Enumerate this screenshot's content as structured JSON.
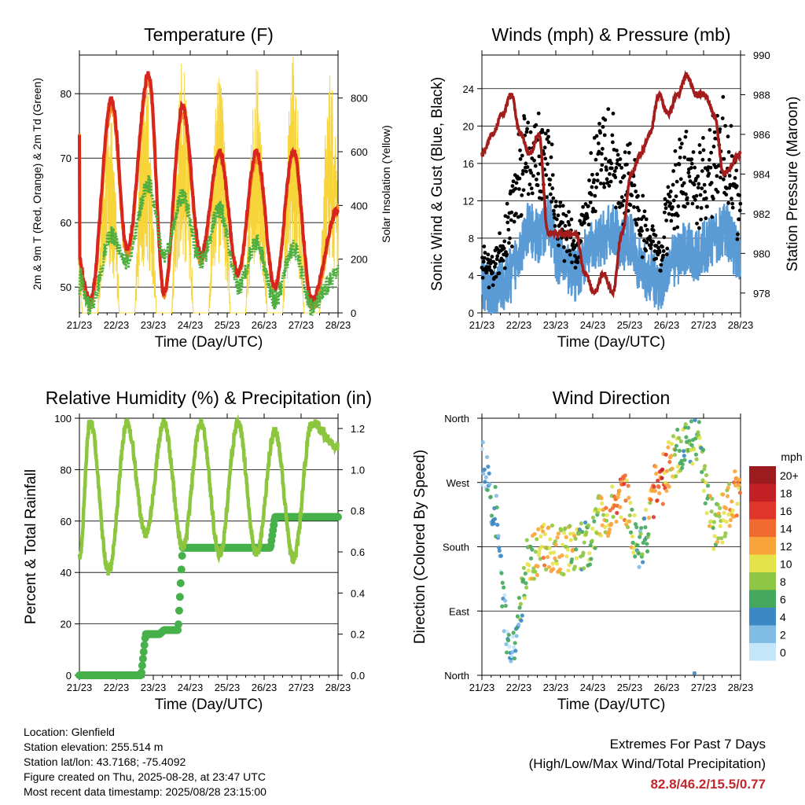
{
  "temperature": {
    "title": "Temperature (F)",
    "ylabel": "2m & 9m T (Red, Orange) & 2m Td (Green)",
    "y2label": "Solar Insolation (Yellow)",
    "xlabel": "Time (Day/UTC)",
    "yticks": [
      "50",
      "60",
      "70",
      "80"
    ],
    "y2ticks": [
      "0",
      "200",
      "400",
      "600",
      "800"
    ]
  },
  "winds": {
    "title": "Winds (mph) & Pressure (mb)",
    "ylabel": "Sonic Wind & Gust (Blue, Black)",
    "y2label": "Station Pressure (Maroon)",
    "xlabel": "Time (Day/UTC)",
    "yticks": [
      "0",
      "4",
      "8",
      "12",
      "16",
      "20",
      "24"
    ],
    "y2ticks": [
      "978",
      "980",
      "982",
      "984",
      "986",
      "988",
      "990"
    ]
  },
  "humidity": {
    "title": "Relative Humidity (%) & Precipitation (in)",
    "ylabel": "Percent & Total Rainfall",
    "xlabel": "Time (Day/UTC)",
    "yticks": [
      "0",
      "20",
      "40",
      "60",
      "80",
      "100"
    ],
    "y2ticks": [
      "0.0",
      "0.2",
      "0.4",
      "0.6",
      "0.8",
      "1.0",
      "1.2"
    ]
  },
  "direction": {
    "title": "Wind Direction",
    "ylabel": "Direction (Colored By Speed)",
    "xlabel": "Time (Day/UTC)",
    "yticks": [
      "North",
      "East",
      "South",
      "West",
      "North"
    ],
    "legend_title": "mph",
    "legend_labels": [
      "20+",
      "18",
      "16",
      "14",
      "12",
      "10",
      "8",
      "6",
      "4",
      "2",
      "0"
    ],
    "legend_colors": [
      "#9b1b1e",
      "#c32026",
      "#e0352b",
      "#f16a2f",
      "#f9a43a",
      "#e4e34a",
      "#8fc643",
      "#44a85c",
      "#3b88c4",
      "#80bce4",
      "#c4e6f8"
    ]
  },
  "x_ticks": [
    "21/23",
    "22/23",
    "23/23",
    "24/23",
    "25/23",
    "26/23",
    "27/23",
    "28/23"
  ],
  "info": {
    "location": "Location: Glenfield",
    "elevation": "Station elevation: 255.514 m",
    "latlon": "Station lat/lon: 43.7168; -75.4092",
    "created": "Figure created on Thu, 2025-08-28, at 23:47 UTC",
    "recent": "Most recent data timestamp: 2025/08/28 23:15:00"
  },
  "extremes": {
    "line1": "Extremes For Past 7 Days",
    "line2": "(High/Low/Max Wind/Total Precipitation)",
    "values": "82.8/46.2/15.5/0.77"
  },
  "colors": {
    "temp2m": "#d7261e",
    "temp9m": "#f58a1f",
    "dewpoint": "#4caf3f",
    "solar": "#f7d53a",
    "wind": "#5b9bd5",
    "gust": "#000000",
    "pressure": "#a31d1d",
    "rh": "#8cc63f",
    "precip": "#46b04a",
    "highlight": "#c1272d"
  },
  "chart_data": [
    {
      "type": "line",
      "title": "Temperature (F)",
      "x": [
        "21/23",
        "21/18",
        "22/06",
        "22/20",
        "23/06",
        "23/20",
        "24/06",
        "24/18",
        "25/06",
        "25/18",
        "26/06",
        "26/18",
        "27/06",
        "27/18",
        "28/06",
        "28/23"
      ],
      "series": [
        {
          "values": [
            74,
            59,
            48,
            79,
            56,
            83,
            49,
            78,
            55,
            71,
            52,
            71,
            50,
            71,
            48,
            62
          ]
        },
        {
          "values": [
            74,
            58,
            47,
            78,
            55,
            82,
            49,
            77,
            54,
            71,
            52,
            70,
            50,
            71,
            47,
            62
          ]
        },
        {
          "values": [
            50,
            56,
            47,
            58,
            54,
            66,
            55,
            64,
            54,
            62,
            50,
            57,
            48,
            56,
            47,
            52
          ]
        }
      ],
      "y2_series": [
        {
          "peaks_by_day": [
            800,
            900,
            950,
            920,
            940,
            960,
            910,
            900
          ]
        }
      ],
      "ylim": [
        46,
        86
      ],
      "y2lim": [
        0,
        960
      ]
    },
    {
      "type": "scatter",
      "title": "Winds (mph) & Pressure (mb)",
      "x": [
        "21/23",
        "22/06",
        "22/12",
        "22/18",
        "23/00",
        "23/06",
        "23/12",
        "23/18",
        "24/00",
        "24/06",
        "24/12",
        "24/18",
        "25/00",
        "25/06",
        "25/12",
        "25/18",
        "26/00",
        "26/06",
        "26/12",
        "26/18",
        "27/00",
        "27/06",
        "27/12",
        "27/18",
        "28/00",
        "28/06",
        "28/12",
        "28/23"
      ],
      "series": [
        {
          "values": [
            3,
            2,
            3,
            4,
            7,
            9,
            8,
            10,
            6,
            5,
            4,
            6,
            7,
            8,
            9,
            7,
            8,
            5,
            4,
            3,
            5,
            6,
            7,
            6,
            7,
            8,
            9,
            6
          ]
        },
        {
          "values": [
            7,
            6,
            8,
            14,
            20,
            22,
            20,
            20,
            12,
            10,
            8,
            14,
            18,
            22,
            20,
            16,
            18,
            12,
            10,
            8,
            14,
            18,
            20,
            16,
            18,
            20,
            22,
            14
          ]
        }
      ],
      "y2_series": [
        {
          "values": [
            985,
            986,
            987,
            988,
            986,
            985,
            986,
            981,
            981,
            981,
            981,
            979,
            978,
            979,
            978,
            981,
            984,
            985,
            986,
            988,
            987,
            988,
            989,
            988,
            988,
            987,
            984,
            985
          ]
        }
      ],
      "ylim": [
        0,
        27.6
      ],
      "y2lim": [
        977,
        990
      ]
    },
    {
      "type": "line",
      "title": "Relative Humidity (%) & Precipitation (in)",
      "x": [
        "21/23",
        "22/06",
        "22/18",
        "23/06",
        "23/18",
        "24/06",
        "24/18",
        "25/06",
        "25/18",
        "26/06",
        "26/18",
        "27/06",
        "27/18",
        "28/06",
        "28/23"
      ],
      "series": [
        {
          "values": [
            46,
            99,
            40,
            98,
            55,
            98,
            50,
            98,
            47,
            98,
            47,
            95,
            45,
            98,
            89
          ]
        },
        {
          "values": [
            0,
            0,
            0,
            0,
            0.2,
            0.22,
            0.62,
            0.62,
            0.62,
            0.62,
            0.62,
            0.77,
            0.77,
            0.77,
            0.77
          ]
        }
      ],
      "ylim": [
        0,
        100
      ],
      "y2lim": [
        0,
        1.25
      ]
    },
    {
      "type": "scatter",
      "title": "Wind Direction",
      "x": [
        "21/23",
        "22/06",
        "22/18",
        "23/06",
        "23/18",
        "24/06",
        "24/18",
        "25/06",
        "25/18",
        "26/06",
        "26/18",
        "27/06",
        "27/18",
        "28/06",
        "28/23"
      ],
      "series": [
        {
          "values": [
            300,
            240,
            20,
            165,
            180,
            175,
            180,
            225,
            250,
            180,
            270,
            310,
            330,
            210,
            260
          ]
        },
        {
          "values": [
            3,
            4,
            3,
            9,
            11,
            10,
            7,
            10,
            13,
            5,
            15,
            8,
            6,
            9,
            12
          ]
        }
      ],
      "ylim": [
        0,
        360
      ]
    }
  ]
}
